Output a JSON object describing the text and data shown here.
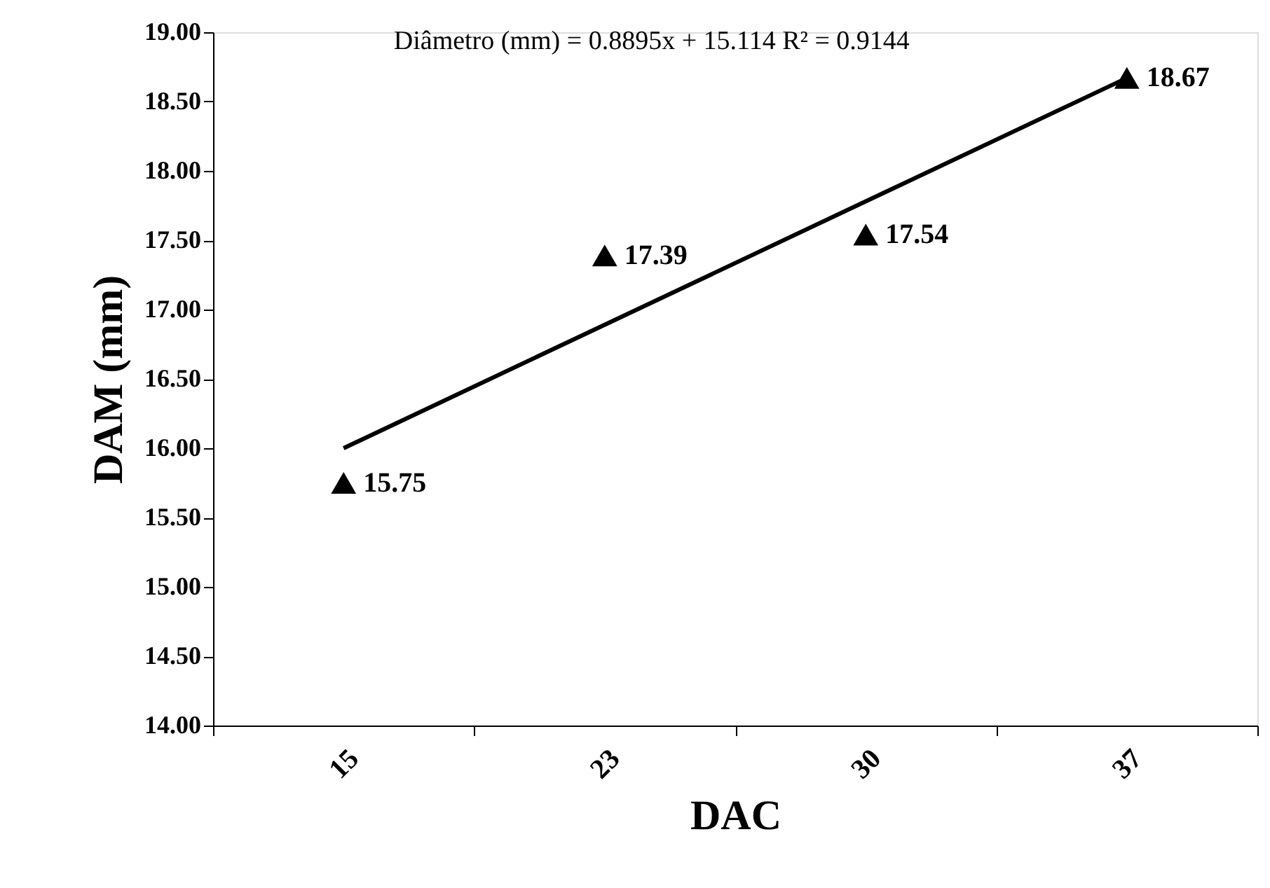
{
  "chart_data": {
    "type": "scatter",
    "xlabel": "DAC",
    "ylabel": "DAM (mm)",
    "categories": [
      "15",
      "23",
      "30",
      "37"
    ],
    "series": [
      {
        "color": "#000000",
        "marker": "triangle",
        "values": [
          15.75,
          17.39,
          17.54,
          18.67
        ],
        "data_labels": true
      },
      {
        "type": "line",
        "color": "#000000",
        "marker": "none",
        "values": [
          16.0,
          16.89,
          17.78,
          18.67
        ]
      }
    ],
    "ylim": [
      14,
      19
    ],
    "yticks": [
      {
        "value": 14,
        "label": "14.00"
      },
      {
        "value": 14.5,
        "label": "14.50"
      },
      {
        "value": 15,
        "label": "15.00"
      },
      {
        "value": 15.5,
        "label": "15.50"
      },
      {
        "value": 16,
        "label": "16.00"
      },
      {
        "value": 16.5,
        "label": "16.50"
      },
      {
        "value": 17,
        "label": "17.00"
      },
      {
        "value": 17.5,
        "label": "17.50"
      },
      {
        "value": 18,
        "label": "18.00"
      },
      {
        "value": 18.5,
        "label": "18.50"
      },
      {
        "value": 19,
        "label": "19.00"
      }
    ],
    "annotations": [
      "Diâmetro (mm) = 0.8895x + 15.114 R² = 0.9144"
    ],
    "grid": false
  }
}
